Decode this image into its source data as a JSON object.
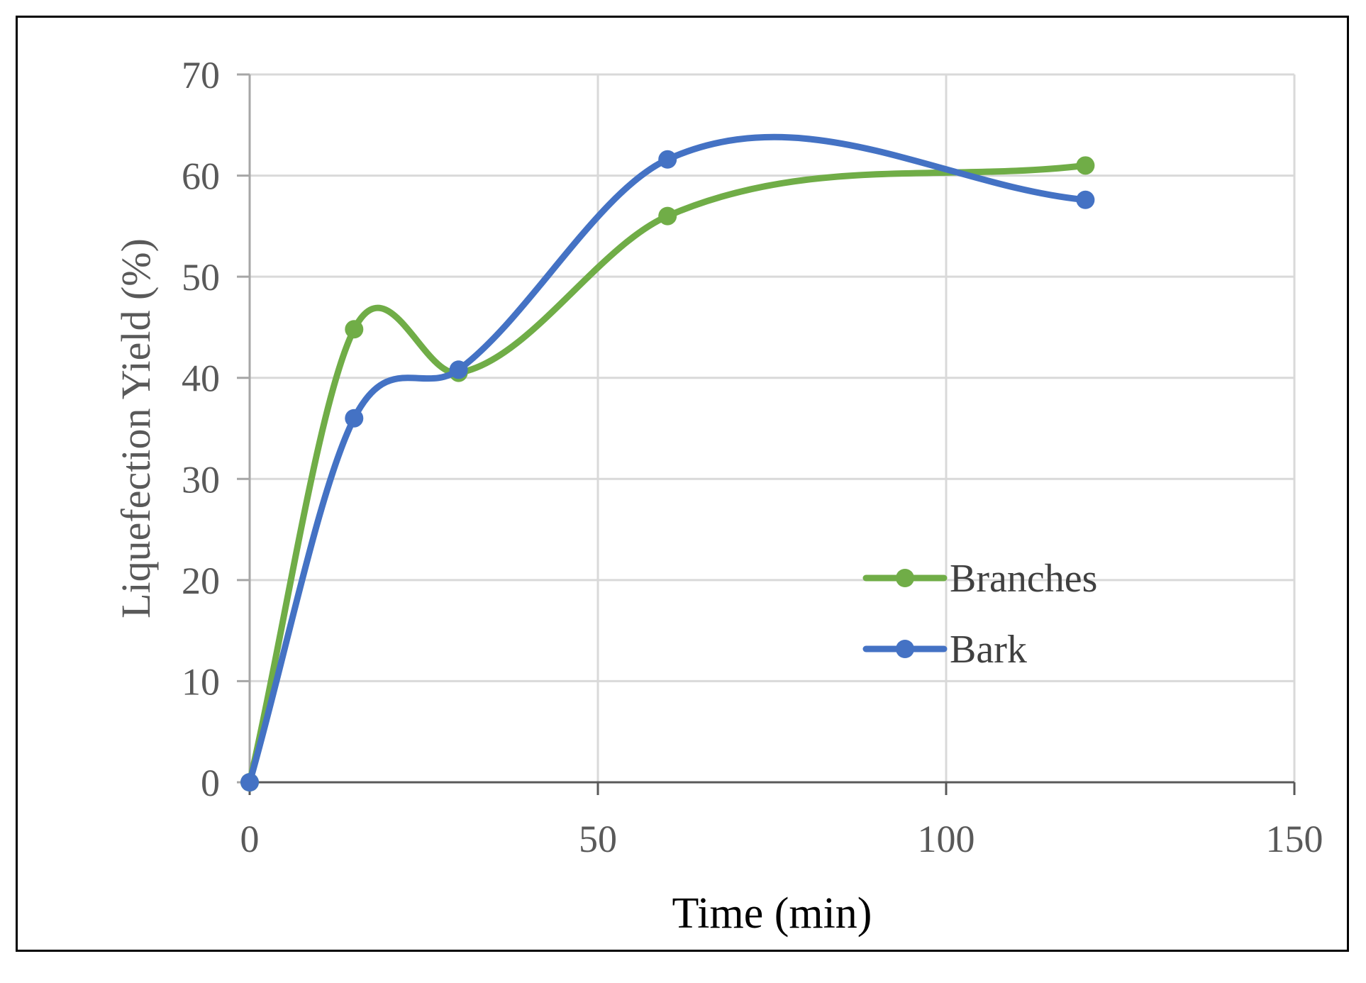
{
  "chart_data": {
    "type": "line",
    "xlabel": "Time (min)",
    "ylabel": "Liquefection Yield (%)",
    "xlim": [
      0,
      150
    ],
    "ylim": [
      0,
      70
    ],
    "x_ticks": [
      0,
      50,
      100,
      150
    ],
    "y_ticks": [
      0,
      10,
      20,
      30,
      40,
      50,
      60,
      70
    ],
    "x_tick_labels": [
      "0",
      "50",
      "100",
      "150"
    ],
    "y_tick_labels": [
      "0",
      "10",
      "20",
      "30",
      "40",
      "50",
      "60",
      "70"
    ],
    "grid": true,
    "smooth": true,
    "legend_position": "center-right",
    "series": [
      {
        "name": "Branches",
        "color": "#70ad47",
        "x": [
          0,
          15,
          30,
          60,
          120
        ],
        "y": [
          0,
          44.8,
          40.5,
          56,
          61
        ]
      },
      {
        "name": "Bark",
        "color": "#4472c4",
        "x": [
          0,
          15,
          30,
          60,
          120
        ],
        "y": [
          0,
          36,
          40.8,
          61.6,
          57.6
        ]
      }
    ]
  }
}
